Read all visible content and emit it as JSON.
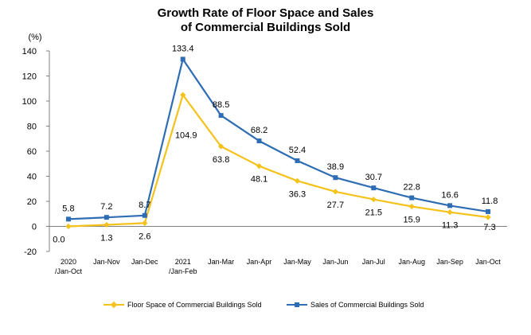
{
  "chart_data": {
    "type": "line",
    "title_line1": "Growth Rate of Floor Space and Sales",
    "title_line2": "of Commercial Buildings Sold",
    "y_unit": "(%)",
    "ylim": [
      -20,
      140
    ],
    "yticks": [
      -20,
      0,
      20,
      40,
      60,
      80,
      100,
      120,
      140
    ],
    "categories": [
      [
        "2020",
        "/Jan-Oct"
      ],
      [
        "Jan-Nov"
      ],
      [
        "Jan-Dec"
      ],
      [
        "2021",
        "/Jan-Feb"
      ],
      [
        "Jan-Mar"
      ],
      [
        "Jan-Apr"
      ],
      [
        "Jan-May"
      ],
      [
        "Jan-Jun"
      ],
      [
        "Jan-Jul"
      ],
      [
        "Jan-Aug"
      ],
      [
        "Jan-Sep"
      ],
      [
        "Jan-Oct"
      ]
    ],
    "series": [
      {
        "name": "Floor Space of Commercial Buildings Sold",
        "color": "#F5C21B",
        "marker": "diamond",
        "label_position": "below",
        "values": [
          0.0,
          1.3,
          2.6,
          104.9,
          63.8,
          48.1,
          36.3,
          27.7,
          21.5,
          15.9,
          11.3,
          7.3
        ],
        "labels": [
          "0.0",
          "1.3",
          "2.6",
          "104.9",
          "63.8",
          "48.1",
          "36.3",
          "27.7",
          "21.5",
          "15.9",
          "11.3",
          "7.3"
        ]
      },
      {
        "name": "Sales of Commercial Buildings Sold",
        "color": "#2E6DB4",
        "marker": "square",
        "label_position": "above",
        "values": [
          5.8,
          7.2,
          8.7,
          133.4,
          88.5,
          68.2,
          52.4,
          38.9,
          30.7,
          22.8,
          16.6,
          11.8
        ],
        "labels": [
          "5.8",
          "7.2",
          "8.7",
          "133.4",
          "88.5",
          "68.2",
          "52.4",
          "38.9",
          "30.7",
          "22.8",
          "16.6",
          "11.8"
        ]
      }
    ],
    "grid": false,
    "legend_position": "bottom"
  }
}
